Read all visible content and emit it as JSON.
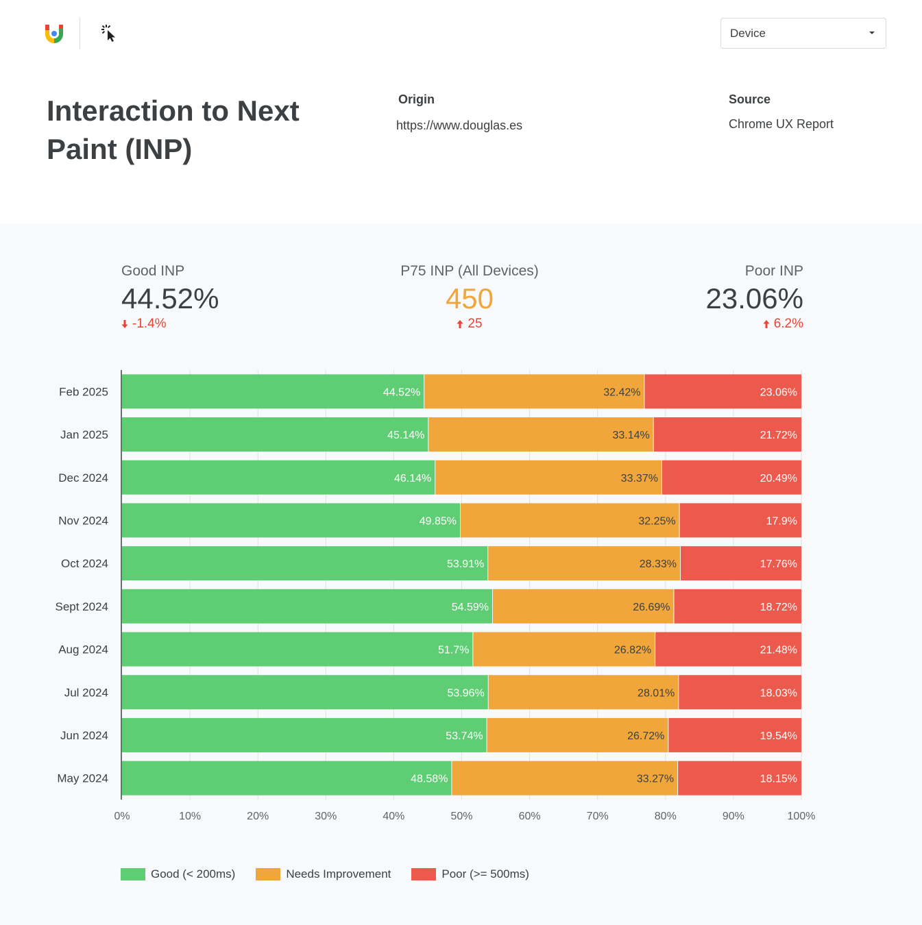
{
  "header": {
    "logo_icon": "google-core-web-vitals-logo-icon",
    "cursor_icon": "interaction-cursor-icon",
    "device_select": {
      "value": "Device",
      "icon": "caret-down-icon"
    }
  },
  "title": "Interaction to Next Paint (INP)",
  "origin": {
    "label": "Origin",
    "value": "https://www.douglas.es"
  },
  "source": {
    "label": "Source",
    "value": "Chrome UX Report"
  },
  "kpis": {
    "good": {
      "label": "Good INP",
      "value": "44.52%",
      "delta": "-1.4%",
      "delta_icon": "arrow-down-icon"
    },
    "p75": {
      "label": "P75 INP (All Devices)",
      "value": "450",
      "delta": "25",
      "delta_icon": "arrow-up-icon"
    },
    "poor": {
      "label": "Poor INP",
      "value": "23.06%",
      "delta": "6.2%",
      "delta_icon": "arrow-up-icon"
    }
  },
  "colors": {
    "good": "#5fcd74",
    "needs": "#f0a63b",
    "poor": "#ec5a4d",
    "p75_value": "#f0a63b",
    "negative": "#ea4335"
  },
  "chart_data": {
    "type": "bar",
    "orientation": "horizontal",
    "stacked": true,
    "categories": [
      "Feb 2025",
      "Jan 2025",
      "Dec 2024",
      "Nov 2024",
      "Oct 2024",
      "Sept 2024",
      "Aug 2024",
      "Jul 2024",
      "Jun 2024",
      "May 2024"
    ],
    "series": [
      {
        "name": "Good (< 200ms)",
        "values": [
          44.52,
          45.14,
          46.14,
          49.85,
          53.91,
          54.59,
          51.7,
          53.96,
          53.74,
          48.58
        ]
      },
      {
        "name": "Needs Improvement",
        "values": [
          32.42,
          33.14,
          33.37,
          32.25,
          28.33,
          26.69,
          26.82,
          28.01,
          26.72,
          33.27
        ]
      },
      {
        "name": "Poor (>= 500ms)",
        "values": [
          23.06,
          21.72,
          20.49,
          17.9,
          17.76,
          18.72,
          21.48,
          18.03,
          19.54,
          18.15
        ]
      }
    ],
    "data_labels": [
      [
        "44.52%",
        "45.14%",
        "46.14%",
        "49.85%",
        "53.91%",
        "54.59%",
        "51.7%",
        "53.96%",
        "53.74%",
        "48.58%"
      ],
      [
        "32.42%",
        "33.14%",
        "33.37%",
        "32.25%",
        "28.33%",
        "26.69%",
        "26.82%",
        "28.01%",
        "26.72%",
        "33.27%"
      ],
      [
        "23.06%",
        "21.72%",
        "20.49%",
        "17.9%",
        "17.76%",
        "18.72%",
        "21.48%",
        "18.03%",
        "19.54%",
        "18.15%"
      ]
    ],
    "xlim": [
      0,
      100
    ],
    "x_ticks": [
      "0%",
      "10%",
      "20%",
      "30%",
      "40%",
      "50%",
      "60%",
      "70%",
      "80%",
      "90%",
      "100%"
    ],
    "grid": true,
    "legend": "bottom-left"
  }
}
